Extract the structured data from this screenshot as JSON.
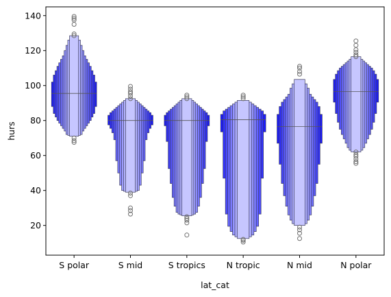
{
  "chart_data": {
    "type": "boxenplot",
    "xlabel": "lat_cat",
    "ylabel": "hurs",
    "ylim": [
      3,
      145
    ],
    "yticks": [
      20,
      40,
      60,
      80,
      100,
      120,
      140
    ],
    "ytick_labels": [
      "20",
      "40",
      "60",
      "80",
      "100",
      "120",
      "140"
    ],
    "categories": [
      "S polar",
      "S mid",
      "S tropics",
      "N tropic",
      "N mid",
      "N polar"
    ],
    "grid": false,
    "colors": {
      "base": "#1a1aff",
      "edge": "#3a3a5a",
      "outlier": "#707070",
      "median": "#555555"
    },
    "series": [
      {
        "category": "S polar",
        "median": 95.5,
        "levels": [
          [
            88,
            102
          ],
          [
            84,
            106
          ],
          [
            82,
            108.5
          ],
          [
            80,
            111
          ],
          [
            78.5,
            113
          ],
          [
            77,
            115
          ],
          [
            75.5,
            117
          ],
          [
            74,
            120
          ],
          [
            72,
            123
          ],
          [
            71.5,
            126
          ],
          [
            71,
            128.5
          ]
        ],
        "outliers": [
          67.5,
          68.5,
          70,
          128.5,
          129.5,
          135,
          137.5,
          138.5,
          139.5
        ]
      },
      {
        "category": "S mid",
        "median": 80,
        "levels": [
          [
            77.5,
            83
          ],
          [
            75.5,
            84.5
          ],
          [
            73,
            85.5
          ],
          [
            69,
            86.5
          ],
          [
            57,
            87.5
          ],
          [
            50,
            88.5
          ],
          [
            43,
            89.5
          ],
          [
            40,
            90.5
          ],
          [
            39.5,
            91.5
          ],
          [
            39,
            92.5
          ]
        ],
        "outliers": [
          26.5,
          28.5,
          30,
          37,
          38.5,
          92.5,
          94,
          95.5,
          96.5,
          98,
          99.5
        ]
      },
      {
        "category": "S tropics",
        "median": 80,
        "levels": [
          [
            77,
            83
          ],
          [
            68,
            84.5
          ],
          [
            52.5,
            85.5
          ],
          [
            44,
            86.5
          ],
          [
            36,
            87.5
          ],
          [
            31,
            88.5
          ],
          [
            27.5,
            89.5
          ],
          [
            26.5,
            90.5
          ],
          [
            26,
            91.5
          ],
          [
            25.5,
            92.5
          ]
        ],
        "outliers": [
          14.5,
          21.5,
          23,
          24,
          25,
          92.5,
          93.5,
          94.5
        ]
      },
      {
        "category": "N tropic",
        "median": 80.5,
        "levels": [
          [
            73.5,
            83.5
          ],
          [
            47,
            85.5
          ],
          [
            26.5,
            86.5
          ],
          [
            19.5,
            87.5
          ],
          [
            16.5,
            88.5
          ],
          [
            14.5,
            89.5
          ],
          [
            13.5,
            90.5
          ],
          [
            12.5,
            91.5
          ]
        ],
        "outliers": [
          10.5,
          11.5,
          12,
          92.5,
          93.5,
          94.5
        ]
      },
      {
        "category": "N mid",
        "median": 76.5,
        "levels": [
          [
            67,
            83.5
          ],
          [
            55,
            88
          ],
          [
            44,
            90.5
          ],
          [
            37,
            92
          ],
          [
            31,
            93.5
          ],
          [
            26,
            95
          ],
          [
            23,
            98.5
          ],
          [
            21,
            101
          ],
          [
            20,
            103.5
          ]
        ],
        "outliers": [
          12.5,
          15.5,
          17.5,
          19,
          106.5,
          108,
          110,
          111
        ]
      },
      {
        "category": "N polar",
        "median": 96.5,
        "levels": [
          [
            90.5,
            103.5
          ],
          [
            84,
            106.5
          ],
          [
            79,
            108.5
          ],
          [
            75,
            110
          ],
          [
            72,
            111
          ],
          [
            69.5,
            112
          ],
          [
            67,
            113
          ],
          [
            64.5,
            114
          ],
          [
            63,
            115
          ],
          [
            62,
            116.5
          ]
        ],
        "outliers": [
          55.5,
          56.5,
          58,
          59.5,
          60.5,
          62,
          116.5,
          117.5,
          119,
          120.5,
          123,
          125.5
        ]
      }
    ]
  }
}
